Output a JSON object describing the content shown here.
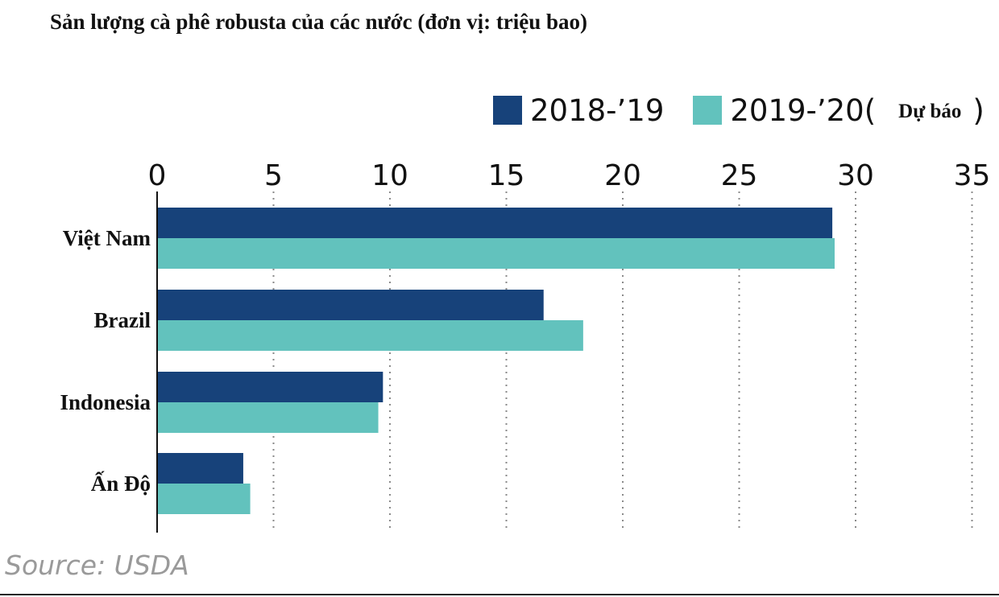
{
  "chart_data": {
    "type": "bar",
    "orientation": "horizontal",
    "title": "Sản lượng cà phê robusta của các nước (đơn vị: triệu bao)",
    "categories": [
      "Việt Nam",
      "Brazil",
      "Indonesia",
      "Ấn Độ"
    ],
    "series": [
      {
        "name": "2018-’19",
        "color": "#17427a",
        "values": [
          29.0,
          16.6,
          9.7,
          3.7
        ]
      },
      {
        "name": "2019-’20",
        "note": "Dự báo",
        "color": "#62c2bd",
        "values": [
          29.1,
          18.3,
          9.5,
          4.0
        ]
      }
    ],
    "xlim": [
      0,
      35
    ],
    "xticks": [
      0,
      5,
      10,
      15,
      20,
      25,
      30,
      35
    ],
    "grid": "vertical dotted",
    "legend_position": "top-right"
  },
  "legend": {
    "series_a": "2018-’19",
    "series_b": "2019-’20",
    "open_paren": "(",
    "note": "Dự báo",
    "close_paren": ")"
  },
  "source": "Source: USDA"
}
